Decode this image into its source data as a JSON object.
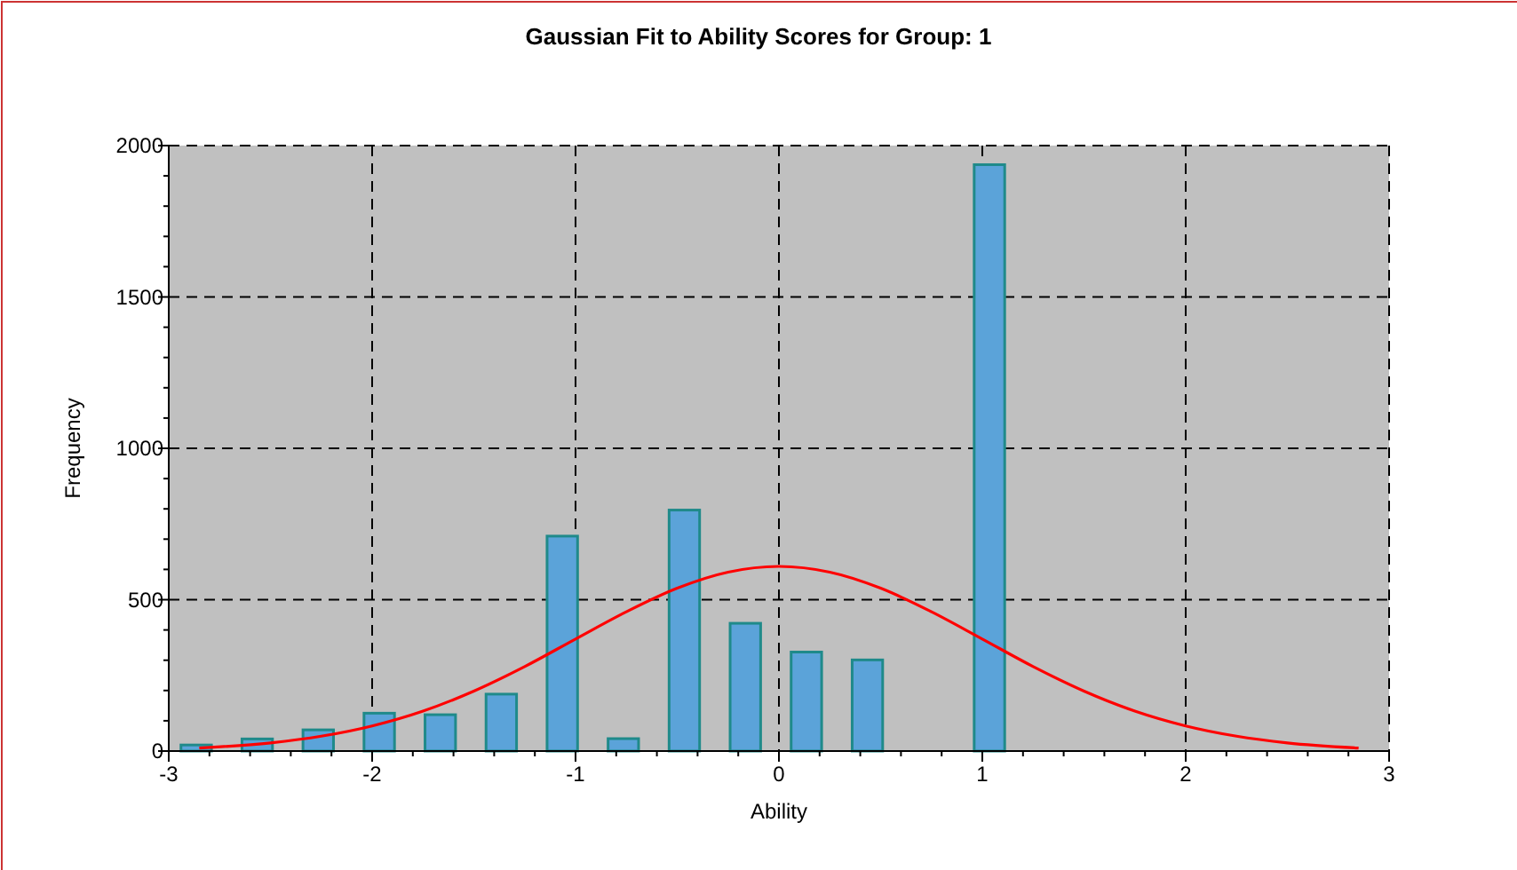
{
  "chart_data": {
    "type": "histogram",
    "title": "Gaussian Fit to Ability Scores for Group: 1",
    "xlabel": "Ability",
    "ylabel": "Frequency",
    "bins": [
      -3,
      -2.7,
      -2.4,
      -2.1,
      -1.8,
      -1.5,
      -1.2,
      -0.9,
      -0.6,
      -0.3,
      0,
      0.3,
      0.6,
      0.9,
      1.2,
      1.5,
      1.8,
      2.1,
      2.4,
      2.7,
      3
    ],
    "xlim": [
      -3,
      3
    ],
    "xticks": [
      -3,
      -2,
      -1,
      0,
      1,
      2,
      3
    ],
    "ylim": [
      0,
      2000
    ],
    "yticks": [
      0,
      500,
      1000,
      1500,
      2000
    ],
    "grid": true,
    "series": [
      {
        "color": "#5ba3d9",
        "values": [
          20,
          40,
          70,
          125,
          120,
          188,
          710,
          41,
          796,
          422,
          327,
          301,
          0,
          1937,
          0,
          0,
          0,
          0,
          0,
          0
        ]
      },
      {
        "type": "line",
        "color": "#ff0000",
        "marker": "none",
        "x": [
          -2.85,
          -2.5,
          -2.25,
          -2,
          -1.75,
          -1.5,
          -1.25,
          -1,
          -0.75,
          -0.5,
          -0.25,
          0,
          0.25,
          0.5,
          0.75,
          1,
          1.25,
          1.5,
          1.75,
          2,
          2.25,
          2.5,
          2.85
        ],
        "values": [
          10,
          27,
          49,
          83,
          132,
          198,
          279,
          370,
          460,
          538,
          591,
          610,
          591,
          538,
          460,
          370,
          279,
          198,
          132,
          83,
          49,
          27,
          10
        ]
      }
    ]
  }
}
